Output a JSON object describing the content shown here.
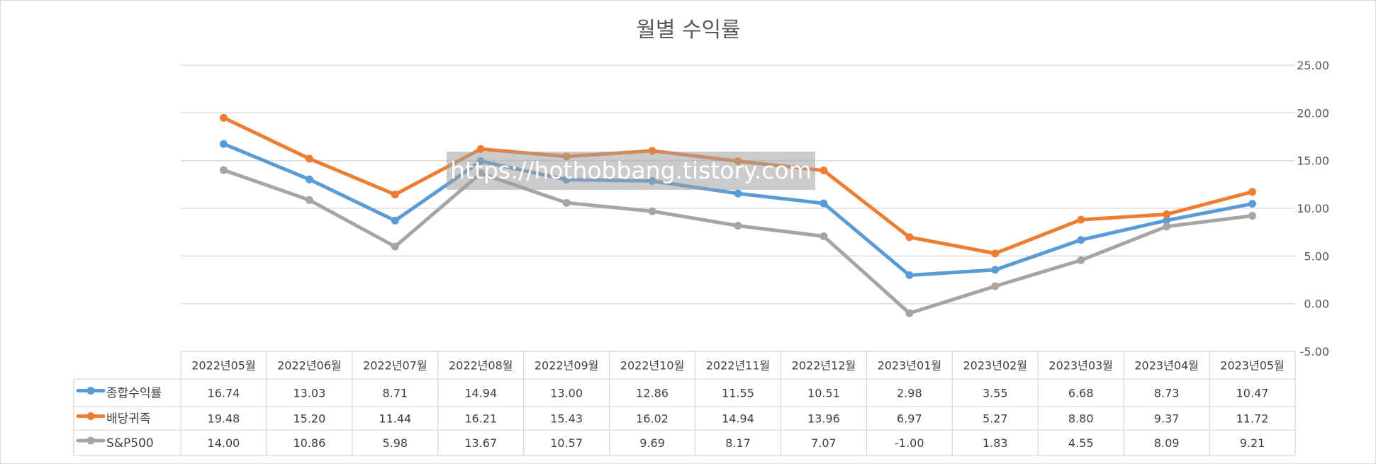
{
  "chart_data": {
    "type": "line",
    "title": "월별 수익률",
    "categories": [
      "2022년05월",
      "2022년06월",
      "2022년07월",
      "2022년08월",
      "2022년09월",
      "2022년10월",
      "2022년11월",
      "2022년12월",
      "2023년01월",
      "2023년02월",
      "2023년03월",
      "2023년04월",
      "2023년05월"
    ],
    "series": [
      {
        "name": "종합수익률",
        "color": "#5B9BD5",
        "values": [
          16.74,
          13.03,
          8.71,
          14.94,
          13.0,
          12.86,
          11.55,
          10.51,
          2.98,
          3.55,
          6.68,
          8.73,
          10.47
        ]
      },
      {
        "name": "배당귀족",
        "color": "#ED7D31",
        "values": [
          19.48,
          15.2,
          11.44,
          16.21,
          15.43,
          16.02,
          14.94,
          13.96,
          6.97,
          5.27,
          8.8,
          9.37,
          11.72
        ]
      },
      {
        "name": "S&P500",
        "color": "#A5A5A5",
        "values": [
          14.0,
          10.86,
          5.98,
          13.67,
          10.57,
          9.69,
          8.17,
          7.07,
          -1.0,
          1.83,
          4.55,
          8.09,
          9.21
        ]
      }
    ],
    "value_labels": [
      [
        "16.74",
        "13.03",
        "8.71",
        "14.94",
        "13.00",
        "12.86",
        "11.55",
        "10.51",
        "2.98",
        "3.55",
        "6.68",
        "8.73",
        "10.47"
      ],
      [
        "19.48",
        "15.20",
        "11.44",
        "16.21",
        "15.43",
        "16.02",
        "14.94",
        "13.96",
        "6.97",
        "5.27",
        "8.80",
        "9.37",
        "11.72"
      ],
      [
        "14.00",
        "10.86",
        "5.98",
        "13.67",
        "10.57",
        "9.69",
        "8.17",
        "7.07",
        "-1.00",
        "1.83",
        "4.55",
        "8.09",
        "9.21"
      ]
    ],
    "yticks": [
      "25.00",
      "20.00",
      "15.00",
      "10.00",
      "5.00",
      "0.00",
      "-5.00"
    ],
    "ylim": [
      -5,
      25
    ],
    "y_axis_side": "right",
    "grid": true,
    "data_table": true,
    "watermark": "https://hothobbang.tistory.com"
  }
}
